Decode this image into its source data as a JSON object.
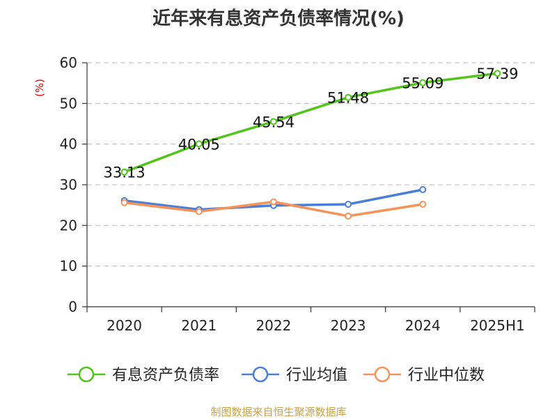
{
  "chart_data": {
    "type": "line",
    "title": "近年来有息资产负债率情况(%)",
    "ylabel": "(%)",
    "xlabel": "",
    "categories": [
      "2020",
      "2021",
      "2022",
      "2023",
      "2024",
      "2025H1"
    ],
    "ylim": [
      0,
      60
    ],
    "yticks": [
      0,
      10,
      20,
      30,
      40,
      50,
      60
    ],
    "grid": true,
    "legend_position": "bottom",
    "series": [
      {
        "name": "有息资产负债率",
        "color": "#52c41a",
        "values": [
          33.13,
          40.05,
          45.54,
          51.48,
          55.09,
          57.39
        ],
        "data_labels": [
          "33.13",
          "40.05",
          "45.54",
          "51.48",
          "55.09",
          "57.39"
        ]
      },
      {
        "name": "行业均值",
        "color": "#4a7fd8",
        "values": [
          26.1,
          23.9,
          24.9,
          25.2,
          28.8,
          null
        ]
      },
      {
        "name": "行业中位数",
        "color": "#f5935a",
        "values": [
          25.6,
          23.4,
          25.8,
          22.3,
          25.2,
          null
        ]
      }
    ],
    "source": "制图数据来自恒生聚源数据库"
  }
}
